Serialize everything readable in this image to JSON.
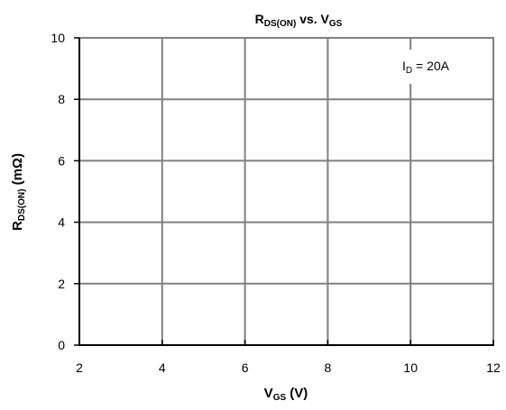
{
  "chart_data": {
    "type": "line",
    "title": {
      "main": "R",
      "sub": "DS(ON)",
      "rest": " vs. V",
      "sub2": "GS"
    },
    "xlabel": {
      "main": "V",
      "sub": "GS",
      "rest": " (V)"
    },
    "ylabel": {
      "main": "R",
      "sub": "DS(ON)",
      "rest": " (mΩ)"
    },
    "xlim": [
      2,
      12
    ],
    "ylim": [
      0,
      10
    ],
    "xticks": [
      2,
      4,
      6,
      8,
      10,
      12
    ],
    "yticks": [
      0,
      2,
      4,
      6,
      8,
      10
    ],
    "grid": true,
    "annotation": {
      "main": "I",
      "sub": "D",
      "rest": " = 20A"
    },
    "series": []
  }
}
